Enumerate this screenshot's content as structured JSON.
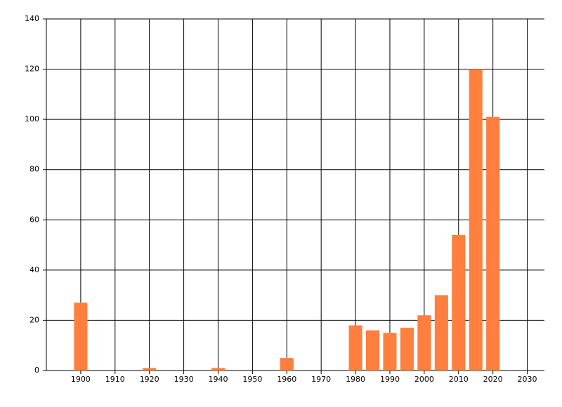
{
  "chart_data": {
    "type": "bar",
    "x": [
      1900,
      1920,
      1940,
      1960,
      1980,
      1985,
      1990,
      1995,
      2000,
      2005,
      2010,
      2015,
      2020
    ],
    "values": [
      27,
      1,
      1,
      5,
      18,
      16,
      15,
      17,
      22,
      30,
      54,
      120,
      101
    ],
    "color": "#ff7f3f",
    "xlim": [
      1890,
      2035
    ],
    "xticks": [
      1900,
      1910,
      1920,
      1930,
      1940,
      1950,
      1960,
      1970,
      1980,
      1990,
      2000,
      2010,
      2020,
      2030
    ],
    "ylim": [
      0,
      140
    ],
    "yticks": [
      0,
      20,
      40,
      60,
      80,
      100,
      120,
      140
    ],
    "grid": true
  }
}
